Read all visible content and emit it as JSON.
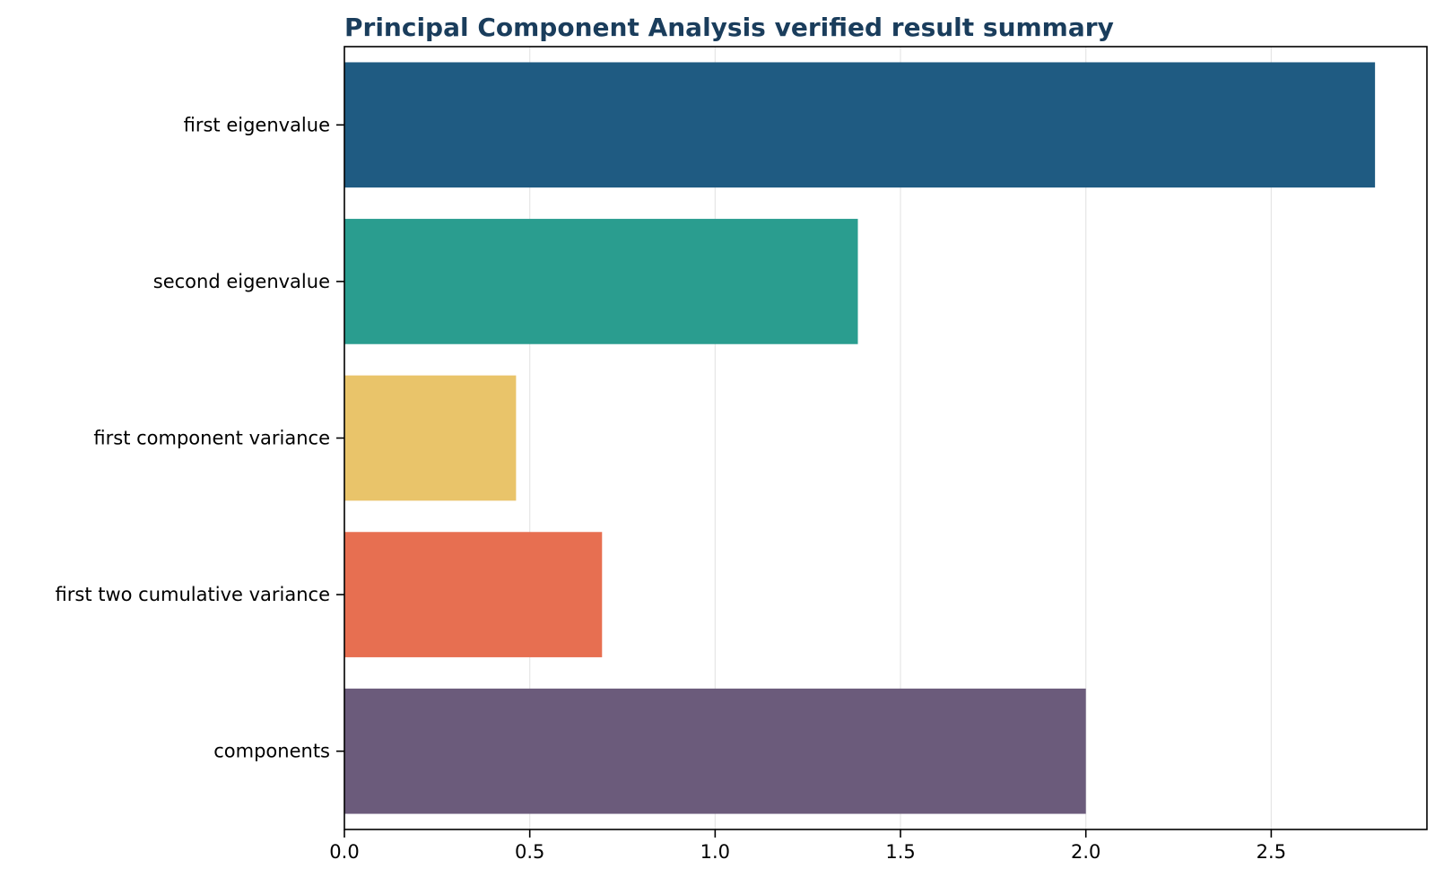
{
  "chart_data": {
    "type": "bar",
    "orientation": "horizontal",
    "title": "Principal Component Analysis verified result summary",
    "xlabel": "",
    "ylabel": "",
    "categories": [
      "first eigenvalue",
      "second eigenvalue",
      "first component variance",
      "first two cumulative variance",
      "components"
    ],
    "values": [
      2.78,
      1.385,
      0.463,
      0.695,
      2.0
    ],
    "bar_colors": [
      "#1f5b82",
      "#2a9d8f",
      "#e9c46a",
      "#e76f51",
      "#6b5b7b"
    ],
    "xlim": [
      0,
      2.92
    ],
    "xticks": [
      0.0,
      0.5,
      1.0,
      1.5,
      2.0,
      2.5
    ],
    "xtick_labels": [
      "0.0",
      "0.5",
      "1.0",
      "1.5",
      "2.0",
      "2.5"
    ],
    "grid": "x",
    "legend": "none"
  },
  "colors": {
    "title": "#1a3d5c",
    "axis": "#000000",
    "grid": "#e6e6e6"
  }
}
